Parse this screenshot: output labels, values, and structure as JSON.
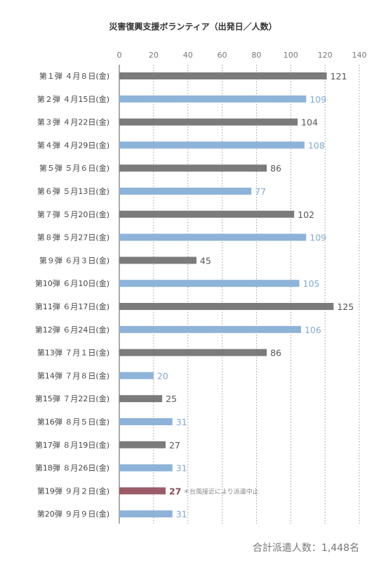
{
  "chart_data": {
    "type": "bar",
    "orientation": "horizontal",
    "title": "災害復興支援ボランティア（出発日／人数）",
    "xlim": [
      0,
      140
    ],
    "x_ticks": [
      0,
      20,
      40,
      60,
      80,
      100,
      120,
      140
    ],
    "grid": true,
    "categories": [
      "第１弾 ４月８日(金)",
      "第２弾 ４月15日(金)",
      "第３弾 ４月22日(金)",
      "第４弾 ４月29日(金)",
      "第５弾 ５月６日(金)",
      "第６弾 ５月13日(金)",
      "第７弾 ５月20日(金)",
      "第８弾 ５月27日(金)",
      "第９弾 ６月３日(金)",
      "第10弾 ６月10日(金)",
      "第11弾 ６月17日(金)",
      "第12弾 ６月24日(金)",
      "第13弾 ７月１日(金)",
      "第14弾 ７月８日(金)",
      "第15弾 ７月22日(金)",
      "第16弾 ８月５日(金)",
      "第17弾 ８月19日(金)",
      "第18弾 ８月26日(金)",
      "第19弾 ９月２日(金)",
      "第20弾 ９月９日(金)"
    ],
    "values": [
      121,
      109,
      104,
      108,
      86,
      77,
      102,
      109,
      45,
      105,
      125,
      106,
      86,
      20,
      25,
      31,
      27,
      31,
      27,
      31
    ],
    "annotations": [
      {
        "index": 18,
        "text": "＊台風接近により派遣中止"
      }
    ],
    "total_label": "合計派遣人数：1,448名",
    "colors": {
      "odd": "#7b7b7b",
      "even": "#8db3d9",
      "highlight": "#9a5b67",
      "odd_label": "#555555",
      "even_label": "#7fa9d4",
      "highlight_label": "#8b4a57"
    },
    "highlight_index": 18
  }
}
